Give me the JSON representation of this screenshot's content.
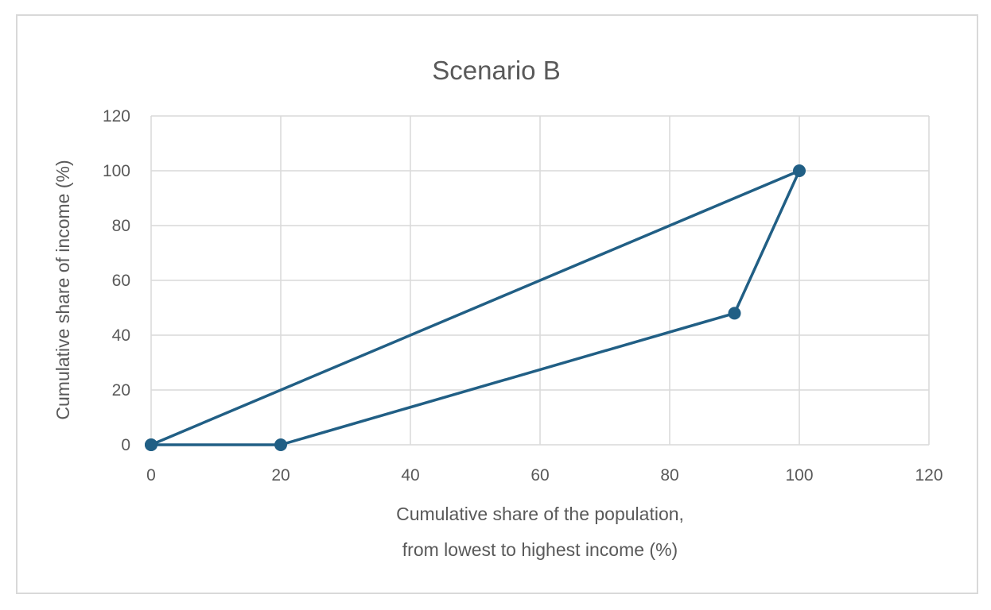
{
  "chart_data": {
    "type": "scatter",
    "title": "Scenario B",
    "xlabel_lines": [
      "Cumulative share of the population,",
      "from lowest to highest income (%)"
    ],
    "ylabel": "Cumulative share of income (%)",
    "xlim": [
      0,
      120
    ],
    "ylim": [
      0,
      120
    ],
    "xticks": [
      0,
      20,
      40,
      60,
      80,
      100,
      120
    ],
    "yticks": [
      0,
      20,
      40,
      60,
      80,
      100,
      120
    ],
    "grid": true,
    "legend": "none",
    "series": [
      {
        "color": "#215f85",
        "markers": true,
        "points": [
          {
            "x": 0,
            "y": 0
          },
          {
            "x": 100,
            "y": 100
          },
          {
            "x": 90,
            "y": 48
          },
          {
            "x": 20,
            "y": 0
          },
          {
            "x": 0,
            "y": 0
          }
        ]
      }
    ]
  }
}
